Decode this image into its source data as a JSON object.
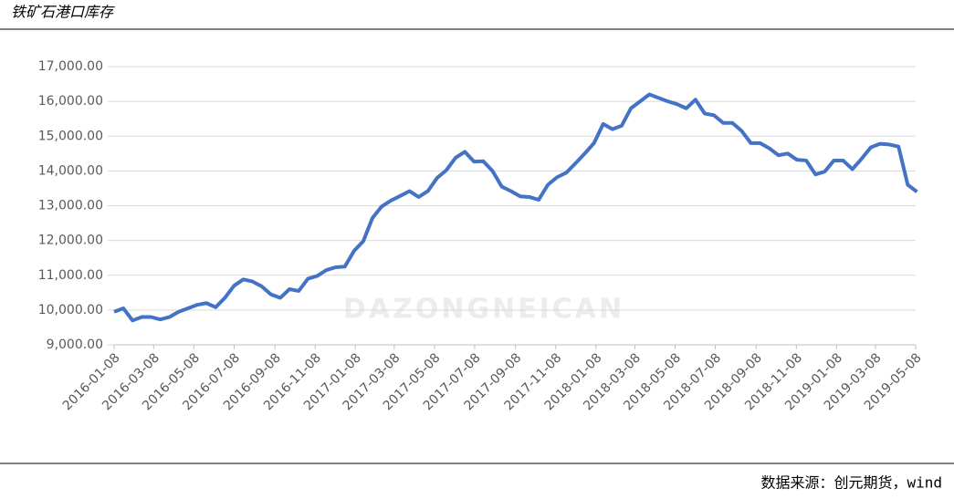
{
  "chart_data": {
    "type": "line",
    "title": "铁矿石港口库存",
    "source": "数据来源：创元期货，wind",
    "watermark": "DAZONGNEICAN",
    "x": [
      "2016-01-08",
      "2016-01-22",
      "2016-02-05",
      "2016-02-19",
      "2016-03-04",
      "2016-03-18",
      "2016-04-01",
      "2016-04-15",
      "2016-04-29",
      "2016-05-13",
      "2016-05-27",
      "2016-06-10",
      "2016-06-24",
      "2016-07-08",
      "2016-07-22",
      "2016-08-05",
      "2016-08-19",
      "2016-09-02",
      "2016-09-16",
      "2016-09-30",
      "2016-10-14",
      "2016-10-28",
      "2016-11-11",
      "2016-11-25",
      "2016-12-09",
      "2016-12-23",
      "2017-01-06",
      "2017-01-20",
      "2017-02-03",
      "2017-02-17",
      "2017-03-03",
      "2017-03-17",
      "2017-03-31",
      "2017-04-14",
      "2017-04-28",
      "2017-05-12",
      "2017-05-26",
      "2017-06-09",
      "2017-06-23",
      "2017-07-07",
      "2017-07-21",
      "2017-08-04",
      "2017-08-18",
      "2017-09-01",
      "2017-09-15",
      "2017-09-29",
      "2017-10-13",
      "2017-10-27",
      "2017-11-10",
      "2017-11-24",
      "2017-12-08",
      "2017-12-22",
      "2018-01-05",
      "2018-01-19",
      "2018-02-02",
      "2018-02-16",
      "2018-03-02",
      "2018-03-16",
      "2018-03-30",
      "2018-04-13",
      "2018-04-27",
      "2018-05-11",
      "2018-05-25",
      "2018-06-08",
      "2018-06-22",
      "2018-07-06",
      "2018-07-20",
      "2018-08-03",
      "2018-08-17",
      "2018-08-31",
      "2018-09-14",
      "2018-09-28",
      "2018-10-12",
      "2018-10-26",
      "2018-11-09",
      "2018-11-23",
      "2018-12-07",
      "2018-12-21",
      "2019-01-04",
      "2019-01-18",
      "2019-02-01",
      "2019-02-15",
      "2019-03-01",
      "2019-03-15",
      "2019-03-29",
      "2019-04-12",
      "2019-04-26",
      "2019-05-10"
    ],
    "series": [
      {
        "name": "铁矿石港口库存",
        "color": "#4472c4",
        "values": [
          9950,
          10050,
          9700,
          9800,
          9800,
          9730,
          9800,
          9950,
          10050,
          10150,
          10200,
          10080,
          10350,
          10700,
          10880,
          10820,
          10680,
          10450,
          10350,
          10600,
          10550,
          10900,
          10980,
          11150,
          11230,
          11250,
          11700,
          11980,
          12650,
          12980,
          13150,
          13280,
          13420,
          13250,
          13420,
          13800,
          14020,
          14380,
          14550,
          14270,
          14280,
          14000,
          13550,
          13420,
          13270,
          13250,
          13170,
          13600,
          13820,
          13950,
          14220,
          14500,
          14800,
          15350,
          15200,
          15300,
          15800,
          16000,
          16200,
          16100,
          16000,
          15920,
          15800,
          16050,
          15650,
          15600,
          15380,
          15380,
          15150,
          14800,
          14800,
          14650,
          14450,
          14500,
          14320,
          14300,
          13900,
          13980,
          14300,
          14300,
          14050,
          14350,
          14680,
          14780,
          14760,
          14700,
          13600,
          13400
        ]
      }
    ],
    "xlim": [
      "2016-01-08",
      "2019-05-08"
    ],
    "xticks": [
      "2016-01-08",
      "2016-03-08",
      "2016-05-08",
      "2016-07-08",
      "2016-09-08",
      "2016-11-08",
      "2017-01-08",
      "2017-03-08",
      "2017-05-08",
      "2017-07-08",
      "2017-09-08",
      "2017-11-08",
      "2018-01-08",
      "2018-03-08",
      "2018-05-08",
      "2018-07-08",
      "2018-09-08",
      "2018-11-08",
      "2019-01-08",
      "2019-03-08",
      "2019-05-08"
    ],
    "ylim": [
      9000,
      17000
    ],
    "yticks": [
      {
        "value": 9000,
        "label": "9,000.00"
      },
      {
        "value": 10000,
        "label": "10,000.00"
      },
      {
        "value": 11000,
        "label": "11,000.00"
      },
      {
        "value": 12000,
        "label": "12,000.00"
      },
      {
        "value": 13000,
        "label": "13,000.00"
      },
      {
        "value": 14000,
        "label": "14,000.00"
      },
      {
        "value": 15000,
        "label": "15,000.00"
      },
      {
        "value": 16000,
        "label": "16,000.00"
      },
      {
        "value": 17000,
        "label": "17,000.00"
      }
    ],
    "grid": true
  }
}
